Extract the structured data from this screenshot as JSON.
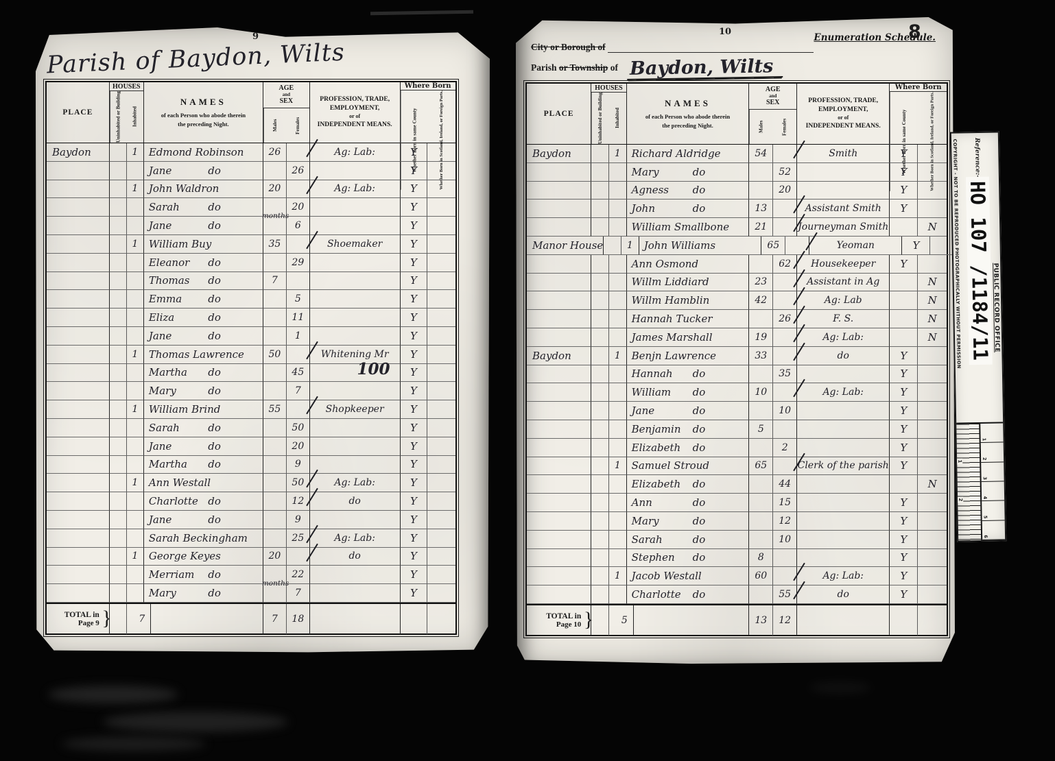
{
  "headers": {
    "place": "PLACE",
    "houses": "HOUSES",
    "uninhabited": "Uninhabited or Building",
    "inhabited": "Inhabited",
    "names": "NAMES",
    "names_sub1": "of each Person who abode therein",
    "names_sub2": "the preceding Night.",
    "age": "AGE",
    "age_and": "and",
    "sex": "SEX",
    "males": "Males",
    "females": "Females",
    "prof1": "PROFESSION, TRADE,",
    "prof2": "EMPLOYMENT,",
    "prof3": "or of",
    "prof4": "INDEPENDENT MEANS.",
    "where_born": "Where Born",
    "born_county": "Whether Born in same County",
    "born_elsewhere": "Whether Born in Scotland, Ireland, or Foreign Parts."
  },
  "left_page": {
    "film_page_number": "9",
    "title": "Parish of Baydon, Wilts",
    "rows": [
      {
        "place": "Baydon",
        "i": "1",
        "name": "Edmond Robinson",
        "m": "26",
        "prof": "Ag: Lab:",
        "wb": "Y"
      },
      {
        "name": "Jane do",
        "f": "26",
        "wb": "Y"
      },
      {
        "i": "1",
        "name": "John Waldron",
        "m": "20",
        "prof": "Ag: Lab:",
        "wb": "Y"
      },
      {
        "name": "Sarah do",
        "f": "20",
        "wb": "Y"
      },
      {
        "name": "Jane do",
        "f": "6",
        "f_note": "months",
        "wb": "Y"
      },
      {
        "i": "1",
        "name": "William Buy",
        "m": "35",
        "prof": "Shoemaker",
        "wb": "Y"
      },
      {
        "name": "Eleanor do",
        "f": "29",
        "wb": "Y"
      },
      {
        "name": "Thomas do",
        "m": "7",
        "wb": "Y"
      },
      {
        "name": "Emma do",
        "f": "5",
        "wb": "Y"
      },
      {
        "name": "Eliza do",
        "f": "11",
        "wb": "Y"
      },
      {
        "name": "Jane do",
        "f": "1",
        "wb": "Y"
      },
      {
        "i": "1",
        "name": "Thomas Lawrence",
        "m": "50",
        "prof": "Whitening Mr",
        "wb": "Y"
      },
      {
        "name": "Martha do",
        "f": "45",
        "annot": "100",
        "wb": "Y"
      },
      {
        "name": "Mary do",
        "f": "7",
        "wb": "Y"
      },
      {
        "i": "1",
        "name": "William Brind",
        "m": "55",
        "prof": "Shopkeeper",
        "wb": "Y"
      },
      {
        "name": "Sarah do",
        "f": "50",
        "wb": "Y"
      },
      {
        "name": "Jane do",
        "f": "20",
        "wb": "Y"
      },
      {
        "name": "Martha do",
        "f": "9",
        "wb": "Y"
      },
      {
        "i": "1",
        "name": "Ann Westall",
        "f": "50",
        "prof": "Ag: Lab:",
        "wb": "Y"
      },
      {
        "name": "Charlotte do",
        "f": "12",
        "prof": "do",
        "wb": "Y"
      },
      {
        "name": "Jane do",
        "f": "9",
        "wb": "Y"
      },
      {
        "name": "Sarah Beckingham",
        "f": "25",
        "prof": "Ag: Lab:",
        "wb": "Y"
      },
      {
        "i": "1",
        "name": "George Keyes",
        "m": "20",
        "prof": "do",
        "wb": "Y"
      },
      {
        "name": "Merriam do",
        "f": "22",
        "wb": "Y"
      },
      {
        "name": "Mary do",
        "f": "7",
        "f_note": "months",
        "wb": "Y"
      }
    ],
    "total": {
      "label": "TOTAL in",
      "page": "Page 9",
      "houses": "7",
      "males": "7",
      "females": "18"
    }
  },
  "right_page": {
    "film_page_number": "10",
    "stamp_number": "8",
    "header": {
      "city_line": "City or Borough of",
      "schedule": "Enumeration Schedule.",
      "parish_word": "Parish",
      "township_word": "or Township",
      "of_word": "of",
      "parish_value": "Baydon, Wilts"
    },
    "rows": [
      {
        "place": "Baydon",
        "i": "1",
        "name": "Richard Aldridge",
        "m": "54",
        "prof": "Smith",
        "wb": "Y"
      },
      {
        "name": "Mary do",
        "f": "52",
        "wb": "Y"
      },
      {
        "name": "Agness do",
        "f": "20",
        "wb": "Y"
      },
      {
        "name": "John do",
        "m": "13",
        "prof": "Assistant Smith",
        "wb": "Y"
      },
      {
        "name": "William Smallbone",
        "m": "21",
        "prof": "Journeyman Smith",
        "wf": "N"
      },
      {
        "place": "Manor House",
        "i": "1",
        "name": "John Williams",
        "m": "65",
        "prof": "Yeoman",
        "wb": "Y"
      },
      {
        "name": "Ann Osmond",
        "f": "62",
        "prof": "Housekeeper",
        "wb": "Y"
      },
      {
        "name": "Willm Liddiard",
        "m": "23",
        "prof": "Assistant in Ag",
        "wf": "N"
      },
      {
        "name": "Willm Hamblin",
        "m": "42",
        "prof": "Ag: Lab",
        "wf": "N"
      },
      {
        "name": "Hannah Tucker",
        "f": "26",
        "prof": "F. S.",
        "wf": "N"
      },
      {
        "name": "James Marshall",
        "m": "19",
        "prof": "Ag: Lab:",
        "wf": "N"
      },
      {
        "place": "Baydon",
        "i": "1",
        "name": "Benjn Lawrence",
        "m": "33",
        "prof": "do",
        "wb": "Y"
      },
      {
        "name": "Hannah do",
        "f": "35",
        "wb": "Y"
      },
      {
        "name": "William do",
        "m": "10",
        "prof": "Ag: Lab:",
        "wb": "Y"
      },
      {
        "name": "Jane do",
        "f": "10",
        "wb": "Y"
      },
      {
        "name": "Benjamin do",
        "m": "5",
        "wb": "Y"
      },
      {
        "name": "Elizabeth do",
        "f": "2",
        "wb": "Y"
      },
      {
        "i": "1",
        "name": "Samuel Stroud",
        "m": "65",
        "prof": "Clerk of the parish",
        "wb": "Y"
      },
      {
        "name": "Elizabeth do",
        "f": "44",
        "wf": "N"
      },
      {
        "name": "Ann do",
        "f": "15",
        "wb": "Y"
      },
      {
        "name": "Mary do",
        "f": "12",
        "wb": "Y"
      },
      {
        "name": "Sarah do",
        "f": "10",
        "wb": "Y"
      },
      {
        "name": "Stephen do",
        "m": "8",
        "wb": "Y"
      },
      {
        "i": "1",
        "name": "Jacob Westall",
        "m": "60",
        "prof": "Ag: Lab:",
        "wb": "Y"
      },
      {
        "name": "Charlotte do",
        "f": "55",
        "prof": "do",
        "wb": "Y"
      }
    ],
    "total": {
      "label": "TOTAL in",
      "page": "Page 10",
      "houses": "5",
      "males": "13",
      "females": "12"
    }
  },
  "reference_strip": {
    "label": "Reference:-",
    "number": "HO 107 /1184/11",
    "office": "PUBLIC RECORD OFFICE",
    "copyright": "COPYRIGHT - NOT TO BE REPRODUCED PHOTOGRAPHICALLY WITHOUT PERMISSION",
    "ruler_top": [
      "1",
      "2",
      "3",
      "4",
      "5",
      "6"
    ],
    "ruler_bottom": [
      "1",
      "2"
    ]
  }
}
